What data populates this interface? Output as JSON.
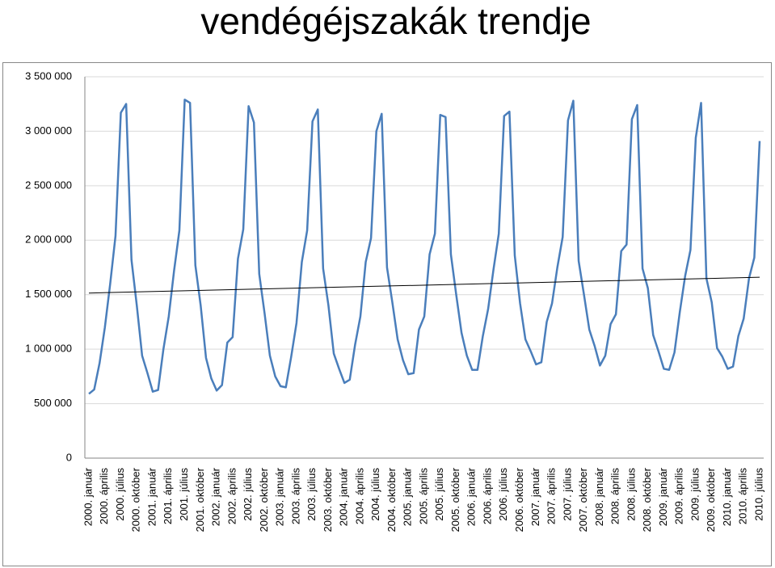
{
  "chart_data": {
    "type": "line",
    "title": "vendégéjszakák trendje",
    "categories": [
      "2000. január",
      null,
      null,
      "2000. április",
      null,
      null,
      "2000. július",
      null,
      null,
      "2000. október",
      null,
      null,
      "2001. január",
      null,
      null,
      "2001. április",
      null,
      null,
      "2001. július",
      null,
      null,
      "2001. október",
      null,
      null,
      "2002. január",
      null,
      null,
      "2002. április",
      null,
      null,
      "2002. július",
      null,
      null,
      "2002. október",
      null,
      null,
      "2003. január",
      null,
      null,
      "2003. április",
      null,
      null,
      "2003. július",
      null,
      null,
      "2003. október",
      null,
      null,
      "2004. január",
      null,
      null,
      "2004. április",
      null,
      null,
      "2004. július",
      null,
      null,
      "2004. október",
      null,
      null,
      "2005. január",
      null,
      null,
      "2005. április",
      null,
      null,
      "2005. július",
      null,
      null,
      "2005. október",
      null,
      null,
      "2006. január",
      null,
      null,
      "2006. április",
      null,
      null,
      "2006. július",
      null,
      null,
      "2006. október",
      null,
      null,
      "2007. január",
      null,
      null,
      "2007. április",
      null,
      null,
      "2007. július",
      null,
      null,
      "2007. október",
      null,
      null,
      "2008. január",
      null,
      null,
      "2008. április",
      null,
      null,
      "2008. július",
      null,
      null,
      "2008. október",
      null,
      null,
      "2009. január",
      null,
      null,
      "2009. április",
      null,
      null,
      "2009. július",
      null,
      null,
      "2009. október",
      null,
      null,
      "2010. január",
      null,
      null,
      "2010. április",
      null,
      null,
      "2010. július"
    ],
    "series": [
      {
        "color": "#4a7ebb",
        "values": [
          590000,
          630000,
          870000,
          1200000,
          1600000,
          2040000,
          3170000,
          3250000,
          1820000,
          1400000,
          940000,
          780000,
          610000,
          625000,
          1000000,
          1300000,
          1720000,
          2090000,
          3290000,
          3260000,
          1770000,
          1400000,
          920000,
          730000,
          620000,
          670000,
          1060000,
          1110000,
          1830000,
          2100000,
          3230000,
          3080000,
          1690000,
          1330000,
          940000,
          750000,
          660000,
          650000,
          930000,
          1240000,
          1800000,
          2090000,
          3090000,
          3200000,
          1740000,
          1400000,
          960000,
          820000,
          690000,
          720000,
          1040000,
          1300000,
          1800000,
          2020000,
          3000000,
          3160000,
          1750000,
          1430000,
          1090000,
          900000,
          770000,
          780000,
          1180000,
          1300000,
          1870000,
          2060000,
          3150000,
          3130000,
          1870000,
          1500000,
          1150000,
          940000,
          810000,
          810000,
          1120000,
          1370000,
          1730000,
          2060000,
          3140000,
          3180000,
          1860000,
          1420000,
          1090000,
          980000,
          860000,
          880000,
          1250000,
          1420000,
          1750000,
          2030000,
          3100000,
          3280000,
          1810000,
          1500000,
          1180000,
          1030000,
          850000,
          940000,
          1230000,
          1320000,
          1900000,
          1960000,
          3110000,
          3240000,
          1740000,
          1560000,
          1130000,
          980000,
          820000,
          810000,
          970000,
          1340000,
          1670000,
          1910000,
          2940000,
          3260000,
          1650000,
          1430000,
          1010000,
          930000,
          820000,
          840000,
          1120000,
          1280000,
          1650000,
          1840000,
          2910000
        ]
      }
    ],
    "trendline": {
      "color": "#000000",
      "values": [
        1515000,
        1660000
      ]
    },
    "ylim": [
      0,
      3500000
    ],
    "yticks": [
      0,
      {
        "value": 500000,
        "label": "500 000"
      },
      {
        "value": 1000000,
        "label": "1 000 000"
      },
      {
        "value": 1500000,
        "label": "1 500 000"
      },
      {
        "value": 2000000,
        "label": "2 000 000"
      },
      {
        "value": 2500000,
        "label": "2 500 000"
      },
      {
        "value": 3000000,
        "label": "3 000 000"
      },
      {
        "value": 3500000,
        "label": "3 500 000"
      }
    ],
    "grid": true
  }
}
